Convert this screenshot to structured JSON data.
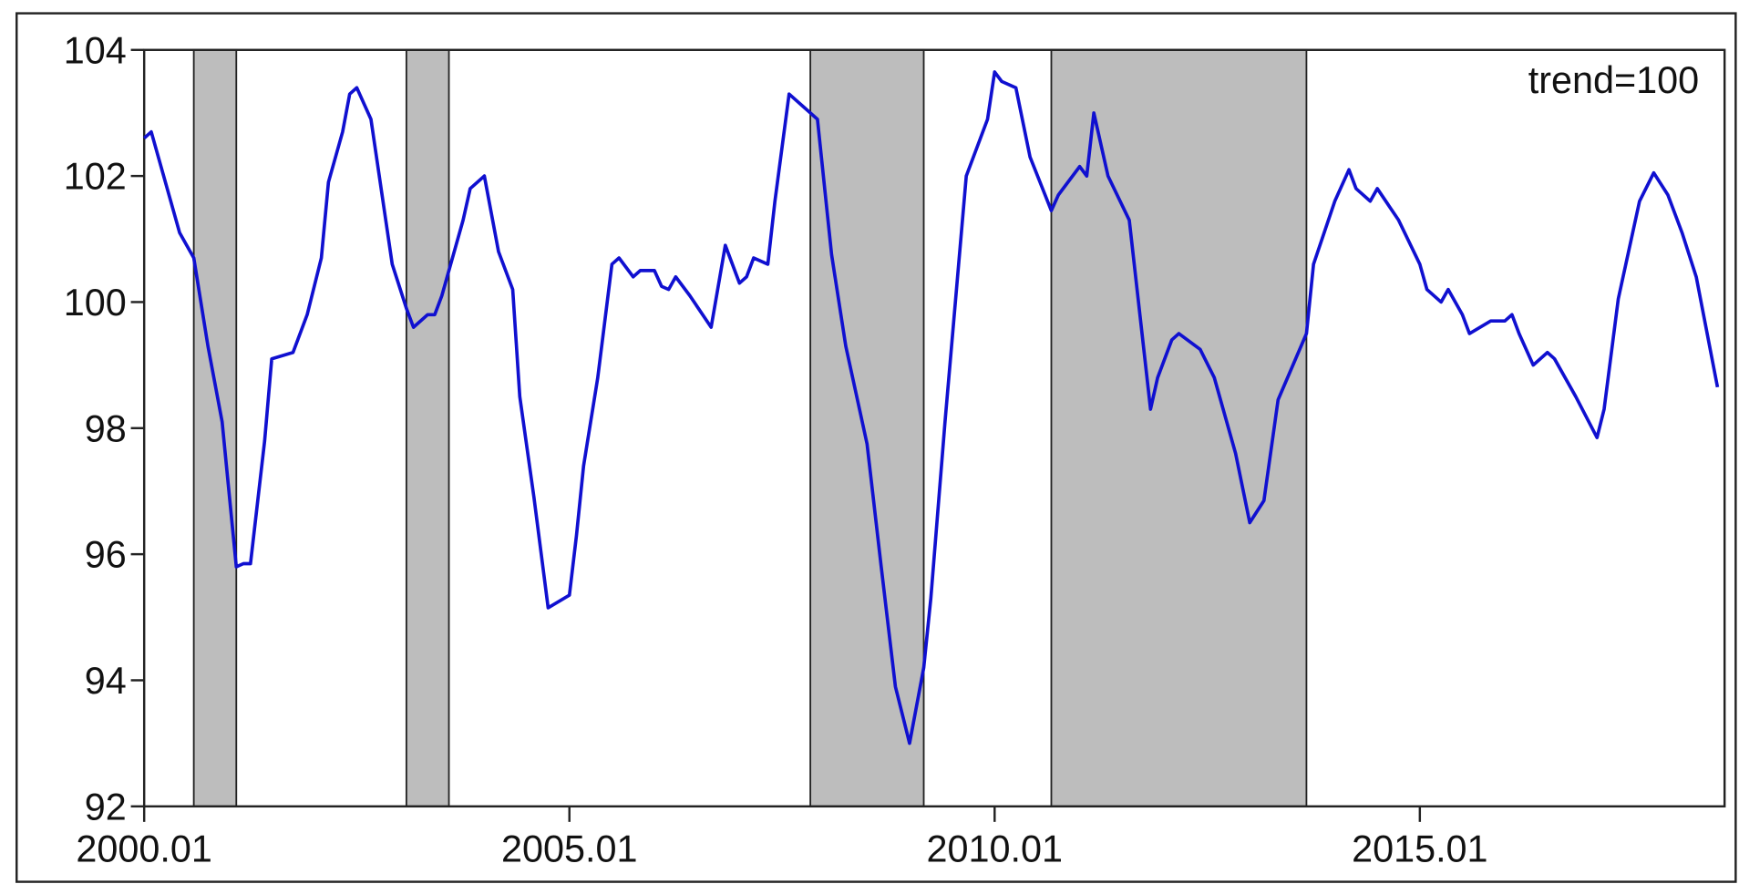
{
  "chart_data": {
    "type": "line",
    "annotation": "trend=100",
    "x": [
      "2000.01",
      "2000.02",
      "2000.03",
      "2000.06",
      "2000.08",
      "2000.10",
      "2000.12",
      "2001.02",
      "2001.03",
      "2001.04",
      "2001.06",
      "2001.07",
      "2001.10",
      "2001.12",
      "2002.02",
      "2002.03",
      "2002.05",
      "2002.06",
      "2002.07",
      "2002.09",
      "2002.12",
      "2003.02",
      "2003.03",
      "2003.05",
      "2003.06",
      "2003.07",
      "2003.10",
      "2003.11",
      "2004.01",
      "2004.02",
      "2004.03",
      "2004.05",
      "2004.06",
      "2004.08",
      "2004.10",
      "2005.01",
      "2005.02",
      "2005.03",
      "2005.05",
      "2005.07",
      "2005.08",
      "2005.10",
      "2005.11",
      "2006.01",
      "2006.02",
      "2006.03",
      "2006.04",
      "2006.06",
      "2006.09",
      "2006.11",
      "2007.01",
      "2007.02",
      "2007.03",
      "2007.05",
      "2007.06",
      "2007.08",
      "2007.10",
      "2007.12",
      "2008.02",
      "2008.04",
      "2008.07",
      "2008.09",
      "2008.11",
      "2009.01",
      "2009.03",
      "2009.04",
      "2009.06",
      "2009.09",
      "2009.11",
      "2009.12",
      "2010.01",
      "2010.02",
      "2010.04",
      "2010.06",
      "2010.09",
      "2010.10",
      "2011.01",
      "2011.02",
      "2011.03",
      "2011.05",
      "2011.08",
      "2011.11",
      "2011.12",
      "2012.02",
      "2012.03",
      "2012.06",
      "2012.08",
      "2012.11",
      "2013.01",
      "2013.03",
      "2013.05",
      "2013.09",
      "2013.10",
      "2014.01",
      "2014.03",
      "2014.04",
      "2014.06",
      "2014.07",
      "2014.10",
      "2015.01",
      "2015.02",
      "2015.04",
      "2015.05",
      "2015.07",
      "2015.08",
      "2015.11",
      "2016.01",
      "2016.02",
      "2016.03",
      "2016.05",
      "2016.07",
      "2016.08",
      "2016.11",
      "2017.02",
      "2017.03",
      "2017.05",
      "2017.08",
      "2017.10",
      "2017.12",
      "2018.02",
      "2018.04",
      "2018.07"
    ],
    "values": [
      102.6,
      102.7,
      102.3,
      101.1,
      100.7,
      99.3,
      98.1,
      95.8,
      95.85,
      95.85,
      97.8,
      99.1,
      99.2,
      99.8,
      100.7,
      101.9,
      102.7,
      103.3,
      103.4,
      102.9,
      100.6,
      99.9,
      99.6,
      99.8,
      99.8,
      100.1,
      101.3,
      101.8,
      102.0,
      101.4,
      100.8,
      100.2,
      98.5,
      96.9,
      95.15,
      95.35,
      96.3,
      97.4,
      98.8,
      100.6,
      100.7,
      100.4,
      100.5,
      100.5,
      100.25,
      100.2,
      100.4,
      100.1,
      99.6,
      100.9,
      100.3,
      100.4,
      100.7,
      100.6,
      101.6,
      103.3,
      103.1,
      102.9,
      100.75,
      99.3,
      97.75,
      95.8,
      93.9,
      93.0,
      94.2,
      95.3,
      98.1,
      102.0,
      102.6,
      102.9,
      103.65,
      103.5,
      103.4,
      102.3,
      101.45,
      101.7,
      102.15,
      102.0,
      103.0,
      102.0,
      101.3,
      98.3,
      98.8,
      99.4,
      99.5,
      99.25,
      98.8,
      97.6,
      96.5,
      96.85,
      98.45,
      99.5,
      100.6,
      101.6,
      102.1,
      101.8,
      101.6,
      101.8,
      101.3,
      100.6,
      100.2,
      100.0,
      100.2,
      99.8,
      99.5,
      99.7,
      99.7,
      99.8,
      99.5,
      99.0,
      99.2,
      99.1,
      98.5,
      97.85,
      98.3,
      100.05,
      101.6,
      102.05,
      101.7,
      101.1,
      100.4,
      98.65
    ],
    "color": "#1010d0",
    "shaded_periods": [
      [
        "2000.08",
        "2001.02"
      ],
      [
        "2003.02",
        "2003.08"
      ],
      [
        "2007.11",
        "2009.03"
      ],
      [
        "2010.09",
        "2013.09"
      ]
    ],
    "shade_color": "#bdbdbd",
    "xlim": [
      "2000.01",
      "2018.08"
    ],
    "xticks": [
      "2000.01",
      "2005.01",
      "2010.01",
      "2015.01"
    ],
    "ylim": [
      92,
      104
    ],
    "yticks": [
      92,
      94,
      96,
      98,
      100,
      102,
      104
    ]
  }
}
